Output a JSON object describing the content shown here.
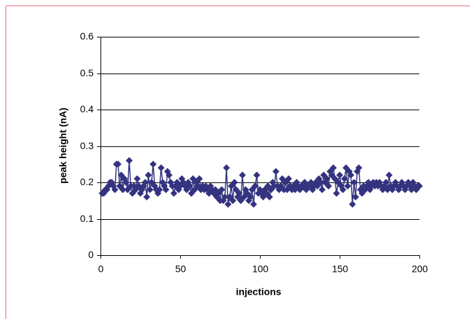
{
  "chart_data": {
    "type": "line",
    "xlabel": "injections",
    "ylabel": "peak height (nA)",
    "x": [
      1,
      2,
      3,
      4,
      5,
      6,
      7,
      8,
      9,
      10,
      11,
      12,
      13,
      14,
      15,
      16,
      17,
      18,
      19,
      20,
      21,
      22,
      23,
      24,
      25,
      26,
      27,
      28,
      29,
      30,
      31,
      32,
      33,
      34,
      35,
      36,
      37,
      38,
      39,
      40,
      41,
      42,
      43,
      44,
      45,
      46,
      47,
      48,
      49,
      50,
      51,
      52,
      53,
      54,
      55,
      56,
      57,
      58,
      59,
      60,
      61,
      62,
      63,
      64,
      65,
      66,
      67,
      68,
      69,
      70,
      71,
      72,
      73,
      74,
      75,
      76,
      77,
      78,
      79,
      80,
      81,
      82,
      83,
      84,
      85,
      86,
      87,
      88,
      89,
      90,
      91,
      92,
      93,
      94,
      95,
      96,
      97,
      98,
      99,
      100,
      101,
      102,
      103,
      104,
      105,
      106,
      107,
      108,
      109,
      110,
      111,
      112,
      113,
      114,
      115,
      116,
      117,
      118,
      119,
      120,
      121,
      122,
      123,
      124,
      125,
      126,
      127,
      128,
      129,
      130,
      131,
      132,
      133,
      134,
      135,
      136,
      137,
      138,
      139,
      140,
      141,
      142,
      143,
      144,
      145,
      146,
      147,
      148,
      149,
      150,
      151,
      152,
      153,
      154,
      155,
      156,
      157,
      158,
      159,
      160,
      161,
      162,
      163,
      164,
      165,
      166,
      167,
      168,
      169,
      170,
      171,
      172,
      173,
      174,
      175,
      176,
      177,
      178,
      179,
      180,
      181,
      182,
      183,
      184,
      185,
      186,
      187,
      188,
      189,
      190,
      191,
      192,
      193,
      194,
      195,
      196,
      197,
      198,
      199,
      200
    ],
    "series": [
      {
        "color": "#333380",
        "values": [
          0.17,
          0.17,
          0.18,
          0.18,
          0.19,
          0.2,
          0.2,
          0.19,
          0.18,
          0.25,
          0.25,
          0.19,
          0.22,
          0.18,
          0.21,
          0.2,
          0.18,
          0.26,
          0.19,
          0.17,
          0.19,
          0.18,
          0.21,
          0.19,
          0.17,
          0.18,
          0.19,
          0.2,
          0.16,
          0.22,
          0.18,
          0.2,
          0.25,
          0.19,
          0.18,
          0.17,
          0.18,
          0.24,
          0.2,
          0.19,
          0.18,
          0.23,
          0.22,
          0.2,
          0.19,
          0.17,
          0.19,
          0.2,
          0.18,
          0.19,
          0.21,
          0.2,
          0.19,
          0.18,
          0.2,
          0.19,
          0.17,
          0.21,
          0.18,
          0.2,
          0.19,
          0.21,
          0.18,
          0.19,
          0.18,
          0.19,
          0.18,
          0.17,
          0.19,
          0.18,
          0.17,
          0.18,
          0.16,
          0.17,
          0.15,
          0.18,
          0.15,
          0.16,
          0.24,
          0.14,
          0.16,
          0.19,
          0.15,
          0.2,
          0.18,
          0.16,
          0.17,
          0.15,
          0.22,
          0.16,
          0.18,
          0.17,
          0.15,
          0.16,
          0.18,
          0.14,
          0.19,
          0.22,
          0.17,
          0.18,
          0.17,
          0.16,
          0.18,
          0.17,
          0.19,
          0.16,
          0.18,
          0.2,
          0.19,
          0.23,
          0.19,
          0.18,
          0.19,
          0.21,
          0.18,
          0.2,
          0.18,
          0.21,
          0.19,
          0.18,
          0.19,
          0.18,
          0.2,
          0.19,
          0.18,
          0.19,
          0.19,
          0.2,
          0.18,
          0.19,
          0.19,
          0.2,
          0.18,
          0.19,
          0.2,
          0.19,
          0.21,
          0.2,
          0.18,
          0.22,
          0.2,
          0.21,
          0.19,
          0.23,
          0.22,
          0.24,
          0.21,
          0.17,
          0.2,
          0.22,
          0.19,
          0.18,
          0.21,
          0.24,
          0.19,
          0.23,
          0.22,
          0.14,
          0.2,
          0.16,
          0.23,
          0.24,
          0.18,
          0.17,
          0.19,
          0.18,
          0.19,
          0.2,
          0.18,
          0.19,
          0.2,
          0.19,
          0.2,
          0.19,
          0.2,
          0.19,
          0.18,
          0.19,
          0.2,
          0.18,
          0.22,
          0.19,
          0.18,
          0.19,
          0.2,
          0.19,
          0.18,
          0.19,
          0.2,
          0.19,
          0.18,
          0.19,
          0.2,
          0.19,
          0.18,
          0.2,
          0.19,
          0.18,
          0.19,
          0.19
        ]
      }
    ],
    "xlim": [
      0,
      200
    ],
    "xticks": [
      0,
      50,
      100,
      150,
      200
    ],
    "ylim": [
      0,
      0.6
    ],
    "yticks": [
      0,
      0.1,
      0.2,
      0.3,
      0.4,
      0.5,
      0.6
    ],
    "grid": true
  }
}
